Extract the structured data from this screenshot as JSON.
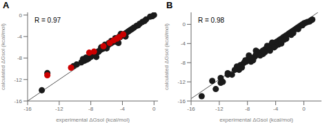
{
  "chart_data": [
    {
      "type": "scatter",
      "title": "A",
      "xlabel": "experimental ΔGsol (kcal/mol)",
      "ylabel": "calculated ΔGsol (kcal/mol)",
      "annotations": [
        "R = 0.97"
      ],
      "xlim": [
        -16,
        0.5
      ],
      "ylim": [
        -16,
        0.5
      ],
      "xticks": [
        -16,
        -12,
        -8,
        -4,
        0
      ],
      "yticks": [
        -16,
        -12,
        -8,
        -4,
        0
      ],
      "series": [
        {
          "type": "scatter",
          "color": "#1a1a1a",
          "values": [
            [
              -14.2,
              -14.0
            ],
            [
              -13.5,
              -10.8
            ],
            [
              -10.2,
              -9.5
            ],
            [
              -9.8,
              -9.2
            ],
            [
              -9.2,
              -8.8
            ],
            [
              -8.8,
              -8.5
            ],
            [
              -8.5,
              -8.3
            ],
            [
              -8.3,
              -8.1
            ],
            [
              -8.0,
              -7.8
            ],
            [
              -7.8,
              -7.5
            ],
            [
              -7.5,
              -7.3
            ],
            [
              -7.2,
              -7.0
            ],
            [
              -7.0,
              -6.8
            ],
            [
              -6.8,
              -6.5
            ],
            [
              -6.5,
              -6.3
            ],
            [
              -6.3,
              -6.1
            ],
            [
              -6.1,
              -5.9
            ],
            [
              -6.0,
              -6.2
            ],
            [
              -5.8,
              -5.6
            ],
            [
              -5.5,
              -5.3
            ],
            [
              -5.3,
              -5.1
            ],
            [
              -5.2,
              -5.0
            ],
            [
              -5.0,
              -4.8
            ],
            [
              -4.8,
              -4.6
            ],
            [
              -4.6,
              -4.4
            ],
            [
              -4.5,
              -5.2
            ],
            [
              -4.3,
              -4.1
            ],
            [
              -4.0,
              -3.8
            ],
            [
              -3.8,
              -3.6
            ],
            [
              -3.5,
              -3.3
            ],
            [
              -3.2,
              -3.0
            ],
            [
              -3.0,
              -2.8
            ],
            [
              -2.8,
              -2.6
            ],
            [
              -2.5,
              -2.3
            ],
            [
              -2.2,
              -2.0
            ],
            [
              -1.8,
              -1.6
            ],
            [
              -1.5,
              -1.3
            ],
            [
              -1.0,
              -0.8
            ],
            [
              -0.5,
              -0.3
            ],
            [
              0.0,
              0.0
            ],
            [
              -0.2,
              -0.2
            ],
            [
              -4.2,
              -3.5
            ],
            [
              -5.7,
              -5.2
            ],
            [
              -6.7,
              -6.0
            ],
            [
              -7.3,
              -7.8
            ],
            [
              -3.6,
              -4.0
            ],
            [
              -5.4,
              -4.8
            ],
            [
              -9.0,
              -8.2
            ],
            [
              -8.6,
              -7.9
            ],
            [
              -6.2,
              -5.5
            ],
            [
              -4.9,
              -4.3
            ],
            [
              -4.4,
              -4.0
            ],
            [
              -3.7,
              -3.5
            ],
            [
              -5.1,
              -4.9
            ],
            [
              -6.4,
              -6.1
            ],
            [
              -7.1,
              -6.8
            ],
            [
              -4.7,
              -5.0
            ],
            [
              -3.3,
              -3.1
            ],
            [
              -2.6,
              -2.4
            ],
            [
              -2.0,
              -1.9
            ],
            [
              -1.2,
              -1.1
            ]
          ]
        },
        {
          "type": "scatter",
          "color": "#cc0000",
          "values": [
            [
              -13.5,
              -11.2
            ],
            [
              -10.5,
              -9.8
            ],
            [
              -8.2,
              -7.0
            ],
            [
              -7.6,
              -6.8
            ],
            [
              -6.4,
              -5.8
            ],
            [
              -5.6,
              -5.2
            ],
            [
              -5.1,
              -4.7
            ],
            [
              -4.7,
              -4.4
            ],
            [
              -4.4,
              -4.1
            ],
            [
              -3.9,
              -3.6
            ]
          ]
        },
        {
          "type": "line",
          "color": "#555555",
          "values": [
            [
              -16,
              -16
            ],
            [
              0,
              0
            ]
          ]
        }
      ]
    },
    {
      "type": "scatter",
      "title": "B",
      "xlabel": "experimental ΔGsol (kcal/mol)",
      "ylabel": "calculated ΔGsol (kcal/mol)",
      "annotations": [
        "R = 0.98"
      ],
      "xlim": [
        -16,
        2.5
      ],
      "ylim": [
        -16,
        2.5
      ],
      "xticks": [
        -16,
        -12,
        -8,
        -4,
        0
      ],
      "yticks": [
        -16,
        -12,
        -8,
        -4,
        0
      ],
      "series": [
        {
          "type": "scatter",
          "color": "#1a1a1a",
          "values": [
            [
              -14.5,
              -15.0
            ],
            [
              -13.0,
              -11.8
            ],
            [
              -11.8,
              -11.2
            ],
            [
              -11.5,
              -12.0
            ],
            [
              -10.8,
              -10.2
            ],
            [
              -9.5,
              -9.0
            ],
            [
              -9.0,
              -8.5
            ],
            [
              -8.5,
              -8.0
            ],
            [
              -8.2,
              -7.8
            ],
            [
              -8.0,
              -7.5
            ],
            [
              -7.8,
              -6.5
            ],
            [
              -7.5,
              -7.2
            ],
            [
              -7.3,
              -7.0
            ],
            [
              -7.0,
              -6.8
            ],
            [
              -6.8,
              -6.5
            ],
            [
              -6.5,
              -6.2
            ],
            [
              -6.3,
              -6.0
            ],
            [
              -6.0,
              -5.8
            ],
            [
              -5.8,
              -5.5
            ],
            [
              -5.5,
              -5.2
            ],
            [
              -5.3,
              -5.0
            ],
            [
              -5.0,
              -4.8
            ],
            [
              -4.8,
              -4.5
            ],
            [
              -4.6,
              -4.3
            ],
            [
              -4.4,
              -4.2
            ],
            [
              -4.2,
              -4.0
            ],
            [
              -4.0,
              -3.8
            ],
            [
              -3.8,
              -3.6
            ],
            [
              -3.5,
              -3.3
            ],
            [
              -3.3,
              -3.1
            ],
            [
              -3.0,
              -2.8
            ],
            [
              -2.8,
              -2.6
            ],
            [
              -2.5,
              -2.3
            ],
            [
              -2.2,
              -2.0
            ],
            [
              -2.0,
              -1.8
            ],
            [
              -1.8,
              -1.6
            ],
            [
              -1.5,
              -1.3
            ],
            [
              -1.2,
              -1.0
            ],
            [
              -1.0,
              -0.8
            ],
            [
              -0.8,
              -0.6
            ],
            [
              -0.5,
              -0.3
            ],
            [
              -0.3,
              -0.1
            ],
            [
              0.0,
              0.2
            ],
            [
              0.2,
              0.3
            ],
            [
              0.5,
              0.5
            ],
            [
              0.8,
              0.6
            ],
            [
              1.0,
              0.8
            ],
            [
              1.2,
              1.0
            ],
            [
              -0.2,
              -0.2
            ],
            [
              -1.5,
              -1.8
            ],
            [
              -2.8,
              -3.2
            ],
            [
              -4.5,
              -3.8
            ],
            [
              -5.2,
              -4.5
            ],
            [
              -6.8,
              -5.5
            ],
            [
              -7.8,
              -7.0
            ],
            [
              -3.2,
              -4.0
            ],
            [
              -5.8,
              -6.2
            ],
            [
              -8.8,
              -8.5
            ],
            [
              -9.5,
              -8.8
            ],
            [
              -6.5,
              -5.8
            ],
            [
              -4.8,
              -5.5
            ],
            [
              -3.6,
              -4.2
            ],
            [
              -2.5,
              -3.0
            ],
            [
              -5.5,
              -5.8
            ],
            [
              -4.0,
              -4.5
            ],
            [
              -6.2,
              -6.5
            ],
            [
              -7.5,
              -7.8
            ],
            [
              -8.3,
              -7.5
            ],
            [
              -9.2,
              -9.5
            ],
            [
              -10.8,
              -10.5
            ],
            [
              -11.8,
              -12.2
            ],
            [
              -12.5,
              -13.5
            ],
            [
              -0.8,
              -1.0
            ],
            [
              -1.8,
              -2.2
            ],
            [
              -3.2,
              -3.5
            ],
            [
              -4.2,
              -4.8
            ],
            [
              -5.8,
              -5.5
            ],
            [
              -6.8,
              -6.3
            ],
            [
              -7.2,
              -7.5
            ],
            [
              -8.8,
              -9.0
            ],
            [
              -9.8,
              -9.5
            ],
            [
              -10.2,
              -10.5
            ]
          ]
        },
        {
          "type": "line",
          "color": "#555555",
          "values": [
            [
              -16,
              -15.5
            ],
            [
              2,
              2.5
            ]
          ]
        }
      ]
    }
  ]
}
